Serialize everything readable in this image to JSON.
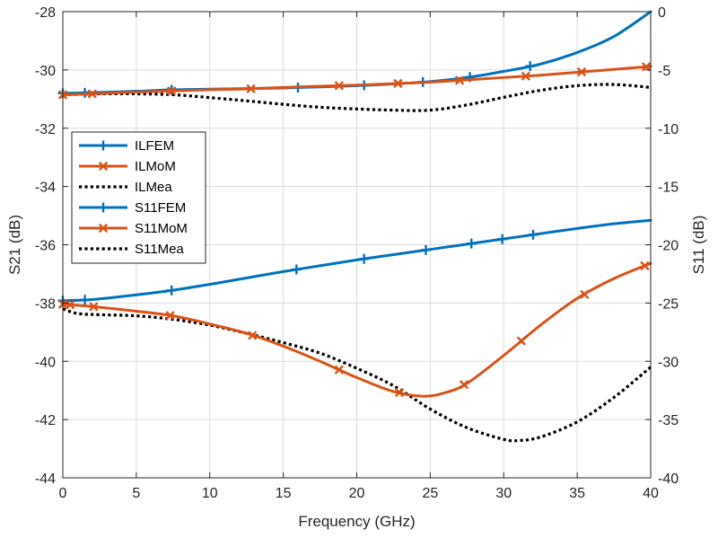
{
  "chart_data": {
    "type": "line",
    "title": "",
    "xlabel": "Frequency (GHz)",
    "ylabel_left": "S21 (dB)",
    "ylabel_right": "S11 (dB)",
    "xlim": [
      0,
      40
    ],
    "ylim_left": [
      -44,
      -28
    ],
    "ylim_right": [
      -40,
      0
    ],
    "xticks": [
      0,
      5,
      10,
      15,
      20,
      25,
      30,
      35,
      40
    ],
    "yticks_left": [
      -44,
      -42,
      -40,
      -38,
      -36,
      -34,
      -32,
      -30,
      -28
    ],
    "yticks_right": [
      -40,
      -35,
      -30,
      -25,
      -20,
      -15,
      -10,
      -5,
      0
    ],
    "grid": true,
    "legend_position": "upper-left",
    "colors": {
      "fem": "#0072BD",
      "mom": "#D95319",
      "mea": "#000000"
    },
    "series": [
      {
        "name": "ILFEM",
        "axis": "left",
        "color": "#0072BD",
        "style": "solid",
        "marker": "plus",
        "x": [
          0,
          2,
          5,
          7.5,
          10,
          12.5,
          15,
          17.5,
          20,
          22.5,
          25,
          27.5,
          30,
          32.5,
          35,
          37.5,
          40
        ],
        "y": [
          -30.8,
          -30.78,
          -30.73,
          -30.68,
          -30.66,
          -30.64,
          -30.62,
          -30.58,
          -30.54,
          -30.48,
          -30.4,
          -30.26,
          -30.05,
          -29.8,
          -29.4,
          -28.85,
          -28.0
        ],
        "marker_x": [
          0,
          1.5,
          7.4,
          16,
          20.5,
          24.5,
          27.7,
          31.8
        ]
      },
      {
        "name": "ILMoM",
        "axis": "left",
        "color": "#D95319",
        "style": "solid",
        "marker": "x",
        "x": [
          0,
          2,
          5,
          7.5,
          10,
          12.5,
          15,
          17.5,
          20,
          22.5,
          25,
          27.5,
          30,
          32.5,
          35,
          37.5,
          40
        ],
        "y": [
          -30.85,
          -30.82,
          -30.76,
          -30.72,
          -30.68,
          -30.65,
          -30.6,
          -30.56,
          -30.52,
          -30.47,
          -30.42,
          -30.34,
          -30.26,
          -30.18,
          -30.08,
          -29.98,
          -29.88
        ],
        "marker_x": [
          0,
          2,
          7.4,
          12.8,
          18.8,
          22.8,
          27,
          31.5,
          35.3,
          39.7
        ]
      },
      {
        "name": "ILMea",
        "axis": "left",
        "color": "#000000",
        "style": "dotted",
        "marker": "none",
        "x": [
          0,
          2.5,
          5,
          7.5,
          10,
          12.5,
          15,
          17.5,
          20,
          22.5,
          25,
          27.5,
          30,
          32.5,
          35,
          37.5,
          40
        ],
        "y": [
          -30.85,
          -30.82,
          -30.82,
          -30.85,
          -30.95,
          -31.06,
          -31.18,
          -31.28,
          -31.34,
          -31.38,
          -31.38,
          -31.2,
          -30.94,
          -30.7,
          -30.54,
          -30.5,
          -30.6
        ],
        "marker_x": []
      },
      {
        "name": "S11FEM",
        "axis": "right",
        "color": "#0072BD",
        "style": "solid",
        "marker": "plus",
        "x": [
          0,
          2,
          5,
          7.5,
          10,
          12.5,
          15,
          17.5,
          20,
          22.5,
          25,
          27.5,
          30,
          32.5,
          35,
          37.5,
          40
        ],
        "y": [
          -24.8,
          -24.7,
          -24.3,
          -23.9,
          -23.4,
          -22.85,
          -22.3,
          -21.8,
          -21.3,
          -20.85,
          -20.4,
          -19.95,
          -19.5,
          -19.05,
          -18.6,
          -18.2,
          -17.9
        ],
        "marker_x": [
          0,
          1.5,
          7.4,
          15.9,
          20.5,
          24.7,
          27.8,
          29.9,
          32
        ]
      },
      {
        "name": "S11MoM",
        "axis": "right",
        "color": "#D95319",
        "style": "solid",
        "marker": "x",
        "x": [
          0,
          2,
          5,
          7.5,
          10,
          12.5,
          15,
          17.5,
          20,
          22.5,
          24.5,
          26,
          27.5,
          30,
          32.5,
          35,
          37.5,
          40
        ],
        "y": [
          -25.1,
          -25.3,
          -25.7,
          -26.1,
          -26.8,
          -27.6,
          -28.7,
          -30.0,
          -31.4,
          -32.6,
          -33.0,
          -32.7,
          -31.9,
          -29.5,
          -26.9,
          -24.6,
          -22.9,
          -21.6
        ],
        "marker_x": [
          0,
          0.5,
          2.1,
          7.3,
          12.9,
          18.8,
          22.9,
          27.3,
          31.2,
          35.5,
          39.6
        ]
      },
      {
        "name": "S11Mea",
        "axis": "right",
        "color": "#000000",
        "style": "dotted",
        "marker": "none",
        "x": [
          0,
          1,
          2.5,
          5,
          7.5,
          10,
          12.5,
          15,
          17.5,
          20,
          22.5,
          25,
          27.5,
          30,
          31,
          32.5,
          35,
          37.5,
          40
        ],
        "y": [
          -25.5,
          -25.9,
          -26.0,
          -26.1,
          -26.4,
          -26.9,
          -27.6,
          -28.4,
          -29.3,
          -30.6,
          -32.1,
          -34.1,
          -35.7,
          -36.7,
          -36.8,
          -36.5,
          -35.2,
          -33.1,
          -30.5
        ],
        "marker_x": []
      }
    ]
  }
}
